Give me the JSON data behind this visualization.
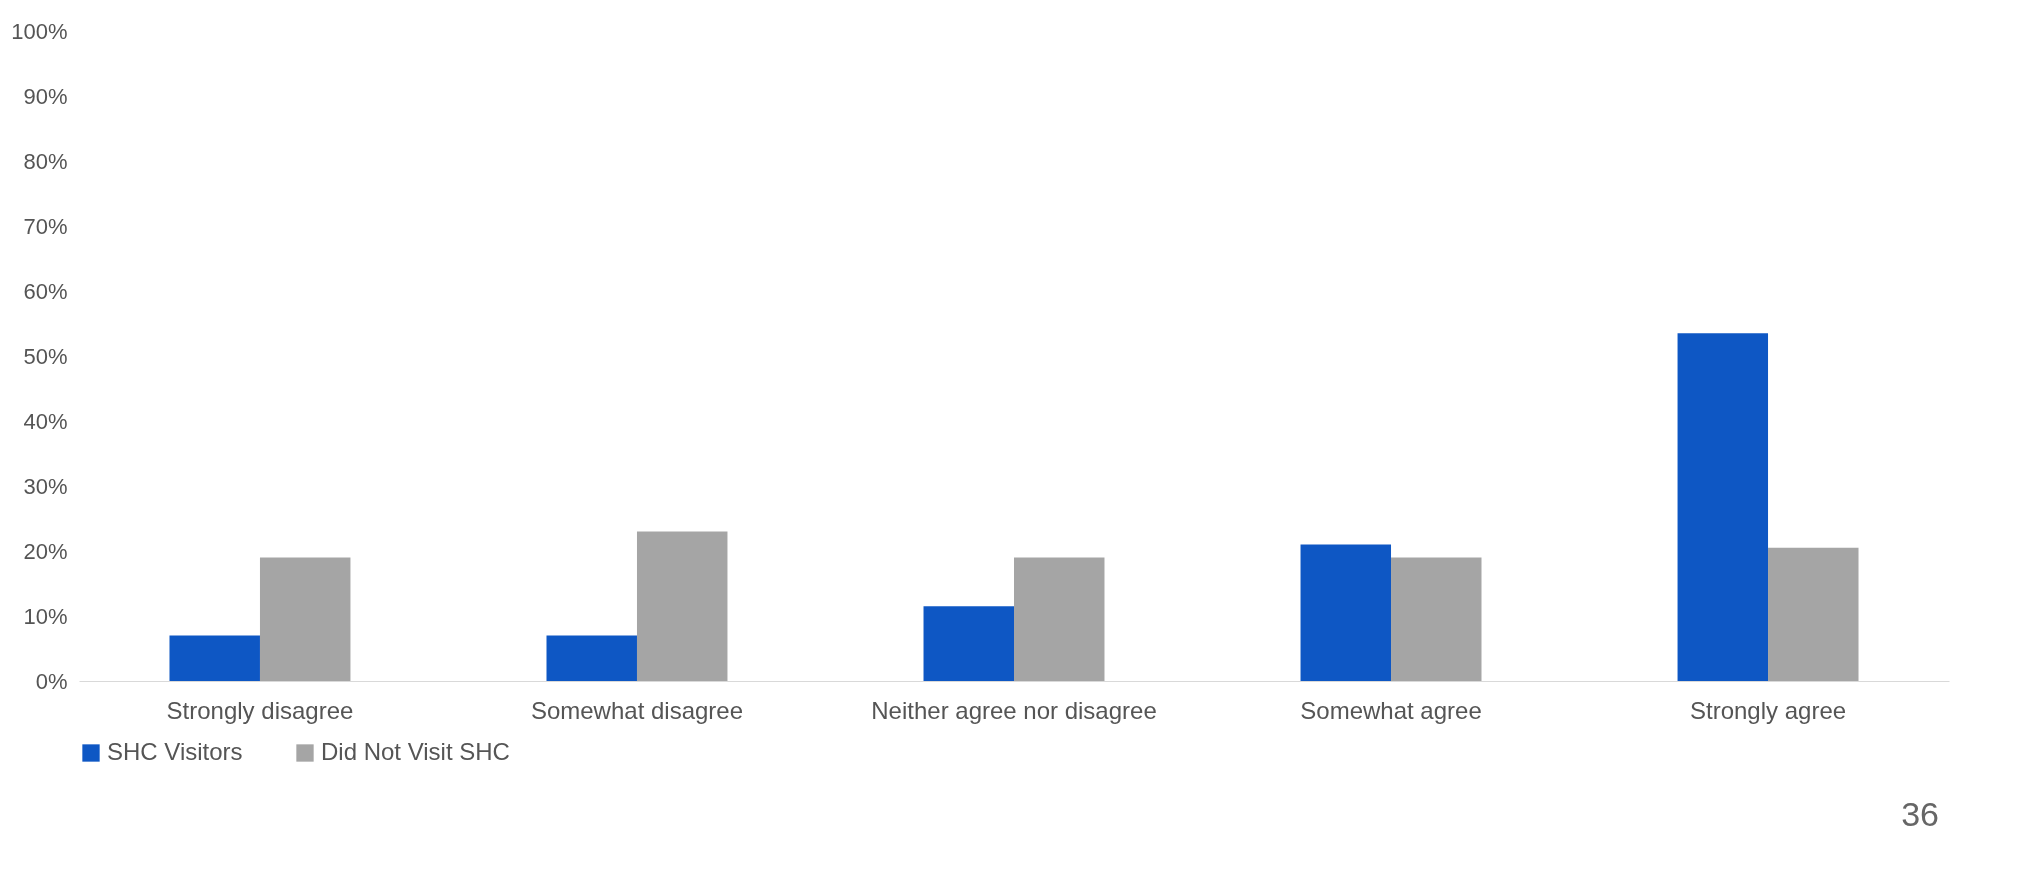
{
  "chart_data": {
    "type": "bar",
    "categories": [
      "Strongly disagree",
      "Somewhat disagree",
      "Neither agree nor disagree",
      "Somewhat agree",
      "Strongly agree"
    ],
    "series": [
      {
        "name": "SHC Visitors",
        "color": "#0e57c4",
        "values": [
          7,
          7,
          11.5,
          21,
          53.5
        ]
      },
      {
        "name": "Did Not Visit SHC",
        "color": "#a5a5a5",
        "values": [
          19,
          23,
          19,
          19,
          20.5
        ]
      }
    ],
    "ylim": [
      0,
      100
    ],
    "yticks": [
      {
        "value": 0,
        "label": "0%"
      },
      {
        "value": 10,
        "label": "10%"
      },
      {
        "value": 20,
        "label": "20%"
      },
      {
        "value": 30,
        "label": "30%"
      },
      {
        "value": 40,
        "label": "40%"
      },
      {
        "value": 50,
        "label": "50%"
      },
      {
        "value": 60,
        "label": "60%"
      },
      {
        "value": 70,
        "label": "70%"
      },
      {
        "value": 80,
        "label": "80%"
      },
      {
        "value": 90,
        "label": "90%"
      },
      {
        "value": 100,
        "label": "100%"
      }
    ],
    "grid": false,
    "legend": "bottom",
    "annotations": [
      "36"
    ]
  }
}
